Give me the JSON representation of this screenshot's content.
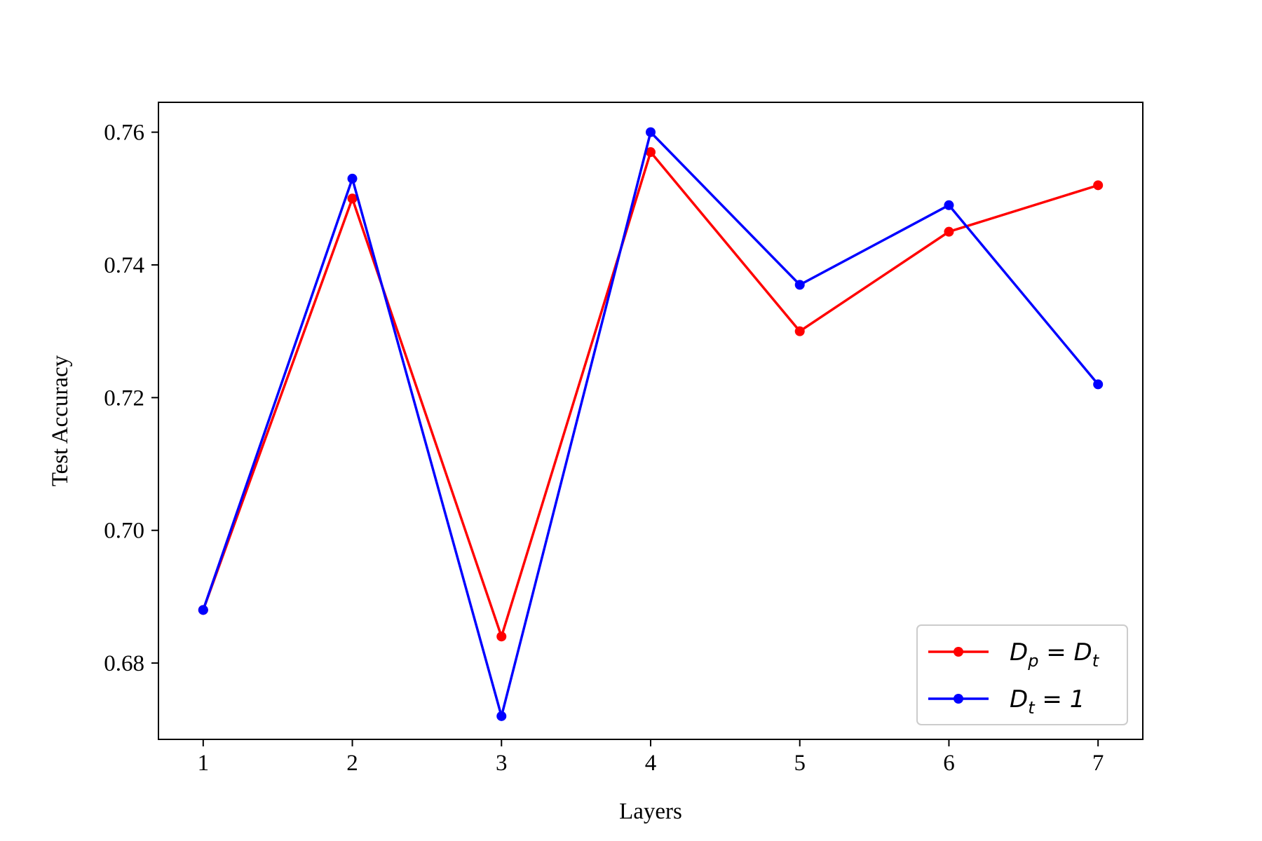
{
  "chart_data": {
    "type": "line",
    "xlabel": "Layers",
    "ylabel": "Test Accuracy",
    "x": [
      1,
      2,
      3,
      4,
      5,
      6,
      7
    ],
    "xlim": [
      0.7,
      7.3
    ],
    "ylim": [
      0.6685,
      0.7645
    ],
    "xticks": [
      "1",
      "2",
      "3",
      "4",
      "5",
      "6",
      "7"
    ],
    "yticks": [
      "0.68",
      "0.70",
      "0.72",
      "0.74",
      "0.76"
    ],
    "ytick_values": [
      0.68,
      0.7,
      0.72,
      0.74,
      0.76
    ],
    "grid": false,
    "legend_position": "bottom-right",
    "series": [
      {
        "name": "D_p = D_t",
        "color": "#ff0000",
        "values": [
          0.688,
          0.75,
          0.684,
          0.757,
          0.73,
          0.745,
          0.752
        ]
      },
      {
        "name": "D_t = 1",
        "color": "#0000ff",
        "values": [
          0.688,
          0.753,
          0.672,
          0.76,
          0.737,
          0.749,
          0.722
        ]
      }
    ]
  }
}
